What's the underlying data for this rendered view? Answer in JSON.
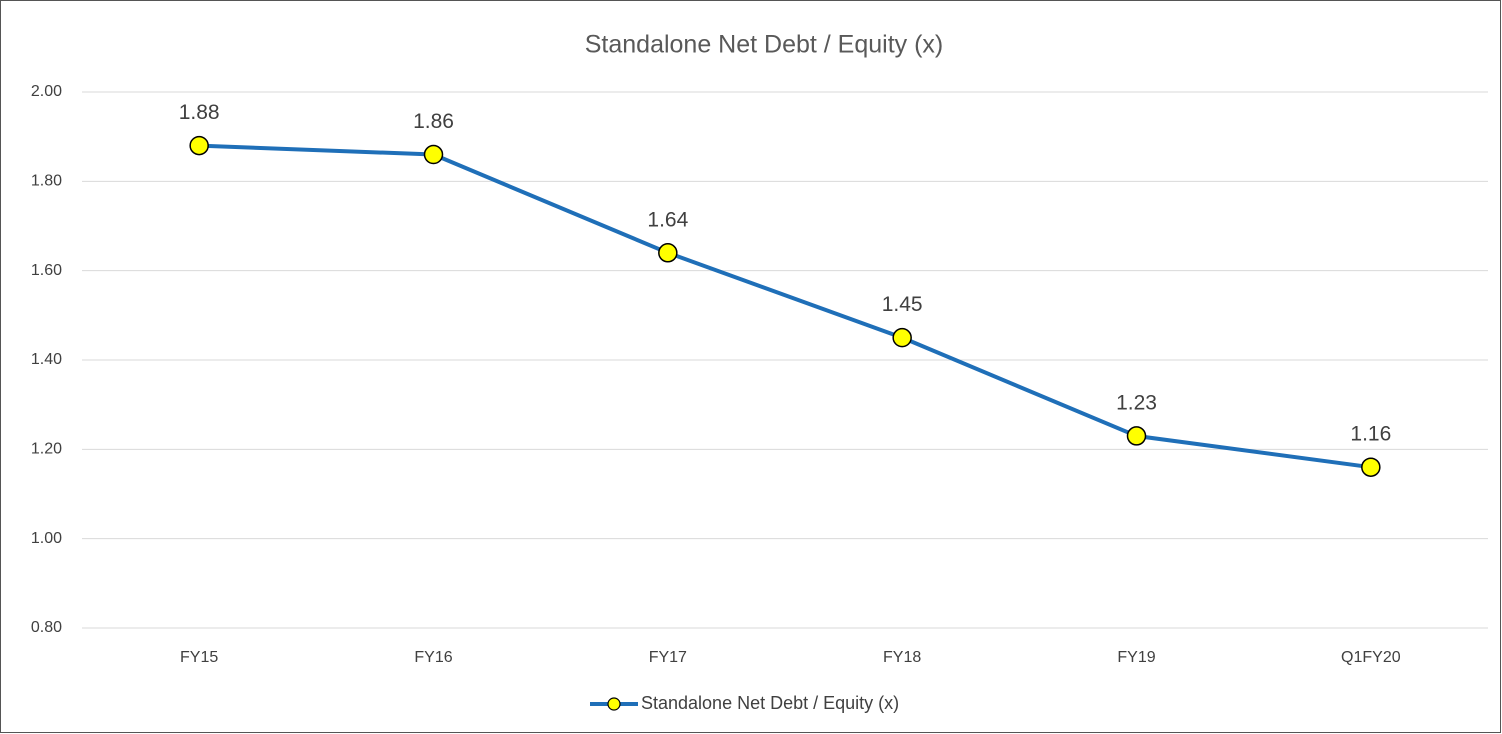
{
  "chart_data": {
    "type": "line",
    "title": "Standalone Net Debt / Equity (x)",
    "categories": [
      "FY15",
      "FY16",
      "FY17",
      "FY18",
      "FY19",
      "Q1FY20"
    ],
    "series": [
      {
        "name": "Standalone Net Debt / Equity (x)",
        "color": "#1f6fb8",
        "marker_color": "#ffff00",
        "values": [
          1.88,
          1.86,
          1.64,
          1.45,
          1.23,
          1.16
        ]
      }
    ],
    "ylim": [
      0.8,
      2.0
    ],
    "yticks": [
      {
        "value": 0.8,
        "label": "0.80"
      },
      {
        "value": 1.0,
        "label": "1.00"
      },
      {
        "value": 1.2,
        "label": "1.20"
      },
      {
        "value": 1.4,
        "label": "1.40"
      },
      {
        "value": 1.6,
        "label": "1.60"
      },
      {
        "value": 1.8,
        "label": "1.80"
      },
      {
        "value": 2.0,
        "label": "2.00"
      }
    ],
    "grid": true,
    "legend": "bottom"
  }
}
